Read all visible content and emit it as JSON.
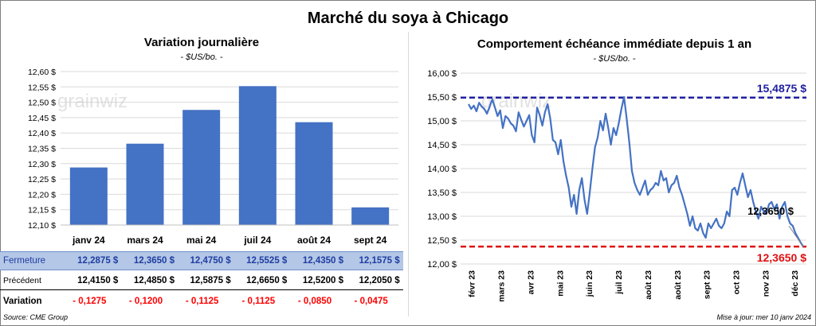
{
  "title": "Marché du soya à Chicago",
  "left_panel": {
    "title": "Variation  journalière",
    "subtitle": "- $US/bo. -",
    "watermark": "grainwiz"
  },
  "right_panel": {
    "title": "Comportement  échéance immédiate depuis 1 an",
    "subtitle": "- $US/bo. -",
    "watermark": "grainwiz"
  },
  "table": {
    "rows": [
      {
        "label": "Fermeture",
        "values": [
          "12,2875  $",
          "12,3650  $",
          "12,4750  $",
          "12,5525  $",
          "12,4350  $",
          "12,1575  $"
        ]
      },
      {
        "label": "Précédent",
        "values": [
          "12,4150  $",
          "12,4850  $",
          "12,5875  $",
          "12,6650  $",
          "12,5200  $",
          "12,2050  $"
        ]
      },
      {
        "label": "Variation",
        "values": [
          "- 0,1275",
          "- 0,1200",
          "- 0,1125",
          "- 0,1125",
          "- 0,0850",
          "- 0,0475"
        ]
      }
    ],
    "colors": {
      "fermeture_bg": "#b4c7e7",
      "fermeture_text": "#1f3da0",
      "variation_text": "#ff0000"
    }
  },
  "footer": {
    "source": "Source: CME Group",
    "updated": "Mise à jour: mer 10 janv 2024"
  },
  "chart_data": [
    {
      "type": "bar",
      "categories": [
        "janv 24",
        "mars 24",
        "mai 24",
        "juil 24",
        "août 24",
        "sept 24"
      ],
      "values": [
        12.2875,
        12.365,
        12.475,
        12.5525,
        12.435,
        12.1575
      ],
      "ylim": [
        12.1,
        12.6
      ],
      "yticks": [
        "12,10 $",
        "12,15 $",
        "12,20 $",
        "12,25 $",
        "12,30 $",
        "12,35 $",
        "12,40 $",
        "12,45 $",
        "12,50 $",
        "12,55 $",
        "12,60 $"
      ],
      "color": "#4472c4",
      "grid": true
    },
    {
      "type": "line",
      "x_labels": [
        "févr 23",
        "mars 23",
        "avr 23",
        "mai 23",
        "juin 23",
        "juil 23",
        "août 23",
        "août 23",
        "sept 23",
        "oct 23",
        "nov 23",
        "déc 23"
      ],
      "ylim": [
        12.0,
        16.0
      ],
      "yticks": [
        "12,00 $",
        "12,50 $",
        "13,00 $",
        "13,50 $",
        "14,00 $",
        "14,50 $",
        "15,00 $",
        "15,50 $",
        "16,00 $"
      ],
      "values": [
        15.35,
        15.25,
        15.32,
        15.2,
        15.38,
        15.3,
        15.25,
        15.15,
        15.3,
        15.45,
        15.28,
        15.1,
        15.22,
        14.85,
        15.1,
        15.05,
        14.95,
        14.9,
        14.78,
        15.18,
        15.02,
        14.88,
        15.0,
        15.12,
        14.7,
        14.55,
        15.28,
        15.12,
        14.9,
        15.18,
        15.35,
        15.05,
        14.6,
        14.55,
        14.3,
        14.6,
        14.15,
        13.85,
        13.6,
        13.2,
        13.45,
        13.05,
        13.55,
        13.8,
        13.35,
        13.05,
        13.5,
        14.0,
        14.45,
        14.65,
        15.0,
        14.8,
        15.15,
        14.85,
        14.5,
        14.85,
        14.7,
        14.95,
        15.25,
        15.5,
        15.05,
        14.55,
        13.95,
        13.7,
        13.55,
        13.45,
        13.6,
        13.75,
        13.45,
        13.55,
        13.6,
        13.7,
        13.65,
        13.95,
        13.75,
        13.8,
        13.5,
        13.65,
        13.7,
        13.85,
        13.6,
        13.45,
        13.25,
        13.05,
        12.8,
        13.0,
        12.75,
        12.7,
        12.85,
        12.65,
        12.55,
        12.85,
        12.75,
        12.85,
        12.95,
        12.8,
        12.75,
        12.85,
        13.1,
        13.0,
        13.55,
        13.6,
        13.45,
        13.7,
        13.9,
        13.65,
        13.4,
        13.55,
        13.3,
        13.1,
        12.95,
        13.2,
        13.1,
        13.05,
        13.25,
        13.3,
        13.15,
        13.25,
        12.95,
        13.2,
        13.3,
        13.0,
        12.85,
        12.8,
        12.65,
        12.55,
        12.45,
        12.365
      ],
      "max_line": {
        "value": 15.4875,
        "label": "15,4875 $",
        "color": "#1f1fa0"
      },
      "min_line": {
        "value": 12.365,
        "label": "12,3650 $",
        "color": "#e01010"
      },
      "last_label": "12,3650 $",
      "color": "#4472c4",
      "grid": true
    }
  ]
}
